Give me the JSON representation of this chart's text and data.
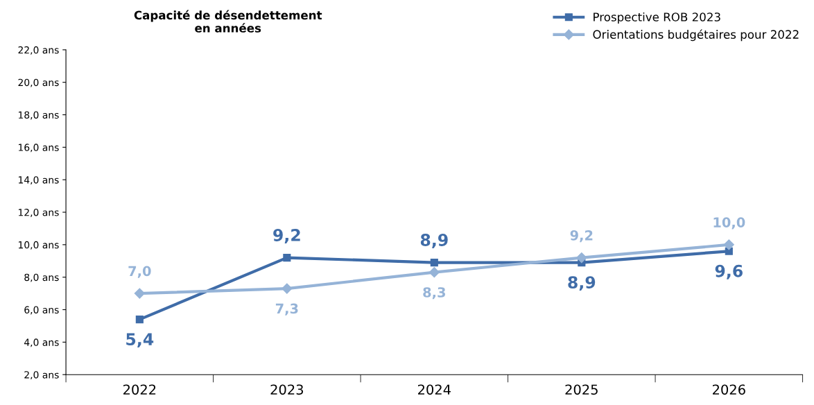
{
  "chart_data": {
    "type": "line",
    "title": "Capacité de désendettement\nen années",
    "categories": [
      "2022",
      "2023",
      "2024",
      "2025",
      "2026"
    ],
    "series": [
      {
        "name": "Prospective ROB 2023",
        "color": "#3f6ca8",
        "marker": "square",
        "values": [
          5.4,
          9.2,
          8.9,
          8.9,
          9.6
        ],
        "value_labels": [
          "5,4",
          "9,2",
          "8,9",
          "8,9",
          "9,6"
        ]
      },
      {
        "name": "Orientations budgétaires pour 2022",
        "color": "#95b3d7",
        "marker": "diamond",
        "values": [
          7.0,
          7.3,
          8.3,
          9.2,
          10.0
        ],
        "value_labels": [
          "7,0",
          "7,3",
          "8,3",
          "9,2",
          "10,0"
        ]
      }
    ],
    "ylim": [
      2,
      22
    ],
    "yticks": [
      {
        "value": 2,
        "label": "2,0 ans"
      },
      {
        "value": 4,
        "label": "4,0 ans"
      },
      {
        "value": 6,
        "label": "6,0 ans"
      },
      {
        "value": 8,
        "label": "8,0 ans"
      },
      {
        "value": 10,
        "label": "10,0 ans"
      },
      {
        "value": 12,
        "label": "12,0 ans"
      },
      {
        "value": 14,
        "label": "14,0 ans"
      },
      {
        "value": 16,
        "label": "16,0 ans"
      },
      {
        "value": 18,
        "label": "18,0 ans"
      },
      {
        "value": 20,
        "label": "20,0 ans"
      },
      {
        "value": 22,
        "label": "22,0 ans"
      }
    ],
    "grid": false,
    "legend": "top right",
    "line_style": "solid"
  }
}
